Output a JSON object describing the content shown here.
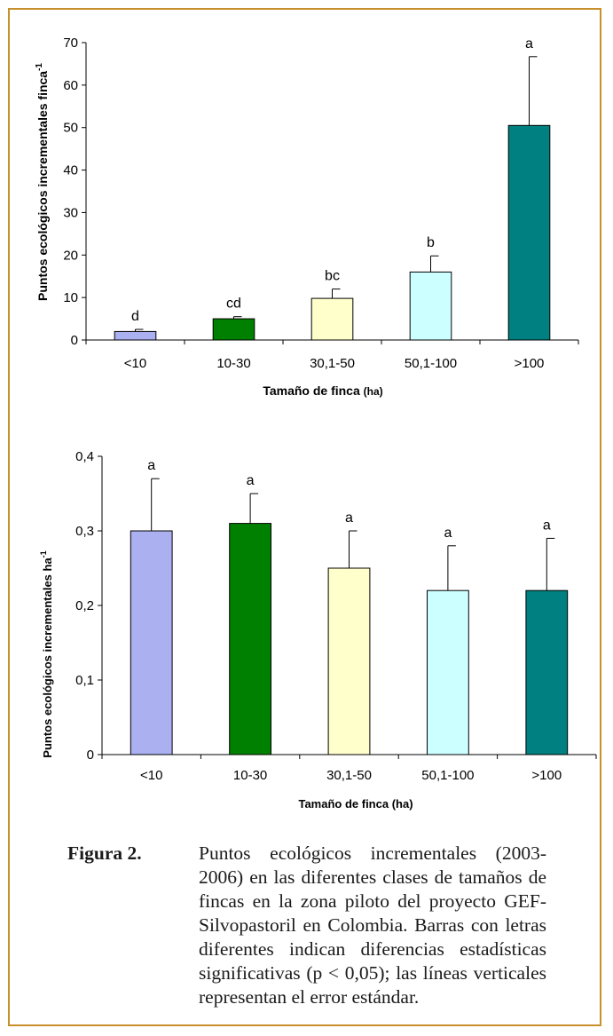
{
  "chart_data": [
    {
      "type": "bar",
      "categories": [
        "<10",
        "10-30",
        "30,1-50",
        "50,1-100",
        ">100"
      ],
      "values": [
        2,
        5,
        9.8,
        16,
        50.5
      ],
      "error": [
        0.5,
        0.5,
        2.2,
        3.8,
        16.2
      ],
      "letters": [
        "d",
        "cd",
        "bc",
        "b",
        "a"
      ],
      "colors": [
        "#aab0f0",
        "#008000",
        "#ffffcc",
        "#ccffff",
        "#008080"
      ],
      "ylim": [
        0,
        70
      ],
      "yticks": [
        "0",
        "10",
        "20",
        "30",
        "40",
        "50",
        "60",
        "70"
      ],
      "yticks_values": [
        0,
        10,
        20,
        30,
        40,
        50,
        60,
        70
      ],
      "xlabel": "Tamaño de finca",
      "xlabel_unit": "(ha)",
      "ylabel": "Puntos ecológicos incrementales finca",
      "ylabel_sup": "-1"
    },
    {
      "type": "bar",
      "categories": [
        "<10",
        "10-30",
        "30,1-50",
        "50,1-100",
        ">100"
      ],
      "values": [
        0.3,
        0.31,
        0.25,
        0.22,
        0.22
      ],
      "error": [
        0.07,
        0.04,
        0.05,
        0.06,
        0.07
      ],
      "letters": [
        "a",
        "a",
        "a",
        "a",
        "a"
      ],
      "colors": [
        "#aab0f0",
        "#008000",
        "#ffffcc",
        "#ccffff",
        "#008080"
      ],
      "ylim": [
        0,
        0.4
      ],
      "yticks": [
        "0",
        "0,1",
        "0,2",
        "0,3",
        "0,4"
      ],
      "yticks_values": [
        0,
        0.1,
        0.2,
        0.3,
        0.4
      ],
      "xlabel": "Tamaño de finca (ha)",
      "ylabel": "Puntos ecológicos incrementales ha",
      "ylabel_sup": "-1"
    }
  ],
  "caption": {
    "label": "Figura 2.",
    "text": "Puntos ecológicos incrementales (2003-2006) en las diferentes clases de tamaños de fincas en la zona piloto del proyecto GEF-Silvopastoril en Colombia. Barras con letras diferentes indican diferencias estadísticas significativas (p < 0,05); las líneas verticales representan el error estándar."
  },
  "colors": {
    "frame": "#c8902c"
  }
}
